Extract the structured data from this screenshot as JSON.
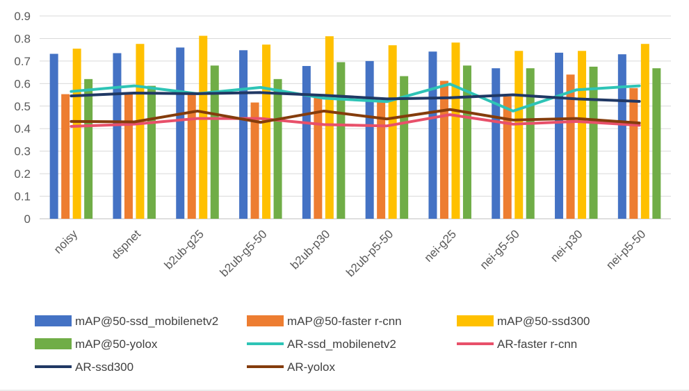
{
  "chart_data": {
    "type": "bar",
    "title": "",
    "xlabel": "",
    "ylabel": "",
    "ylim": [
      0,
      0.9
    ],
    "yticks": [
      "0",
      "0.1",
      "0.2",
      "0.3",
      "0.4",
      "0.5",
      "0.6",
      "0.7",
      "0.8",
      "0.9"
    ],
    "grid": true,
    "legend_position": "bottom",
    "categories": [
      "noisy",
      "dspnet",
      "b2ub-g25",
      "b2ub-g5-50",
      "b2ub-p30",
      "b2ub-p5-50",
      "nei-g25",
      "nei-g5-50",
      "nei-p30",
      "nei-p5-50"
    ],
    "bar_series": [
      {
        "name": "mAP@50-ssd_mobilenetv2",
        "color": "#4472c4",
        "values": [
          0.732,
          0.735,
          0.76,
          0.748,
          0.678,
          0.7,
          0.742,
          0.668,
          0.737,
          0.73
        ]
      },
      {
        "name": "mAP@50-faster r-cnn",
        "color": "#ed7d31",
        "values": [
          0.553,
          0.552,
          0.56,
          0.516,
          0.54,
          0.52,
          0.612,
          0.543,
          0.64,
          0.58
        ]
      },
      {
        "name": "mAP@50-ssd300",
        "color": "#ffc000",
        "values": [
          0.755,
          0.776,
          0.812,
          0.773,
          0.81,
          0.77,
          0.782,
          0.745,
          0.745,
          0.776
        ]
      },
      {
        "name": "mAP@50-yolox",
        "color": "#70ad47",
        "values": [
          0.62,
          0.59,
          0.68,
          0.62,
          0.695,
          0.633,
          0.68,
          0.668,
          0.675,
          0.668
        ]
      }
    ],
    "line_series": [
      {
        "name": "AR-ssd_mobilenetv2",
        "color": "#2ec4b6",
        "values": [
          0.565,
          0.59,
          0.555,
          0.583,
          0.535,
          0.52,
          0.598,
          0.478,
          0.572,
          0.59
        ]
      },
      {
        "name": "AR-faster r-cnn",
        "color": "#e8506a",
        "values": [
          0.41,
          0.42,
          0.445,
          0.445,
          0.418,
          0.412,
          0.462,
          0.42,
          0.432,
          0.415
        ]
      },
      {
        "name": "AR-ssd300",
        "color": "#203864",
        "values": [
          0.545,
          0.558,
          0.555,
          0.56,
          0.548,
          0.532,
          0.537,
          0.55,
          0.532,
          0.521
        ]
      },
      {
        "name": "AR-yolox",
        "color": "#843c0c",
        "values": [
          0.432,
          0.43,
          0.478,
          0.428,
          0.478,
          0.443,
          0.485,
          0.438,
          0.445,
          0.425
        ]
      }
    ],
    "legend_order": [
      "mAP@50-ssd_mobilenetv2",
      "mAP@50-faster r-cnn",
      "mAP@50-ssd300",
      "mAP@50-yolox",
      "AR-ssd_mobilenetv2",
      "AR-faster r-cnn",
      "AR-ssd300",
      "AR-yolox"
    ]
  }
}
